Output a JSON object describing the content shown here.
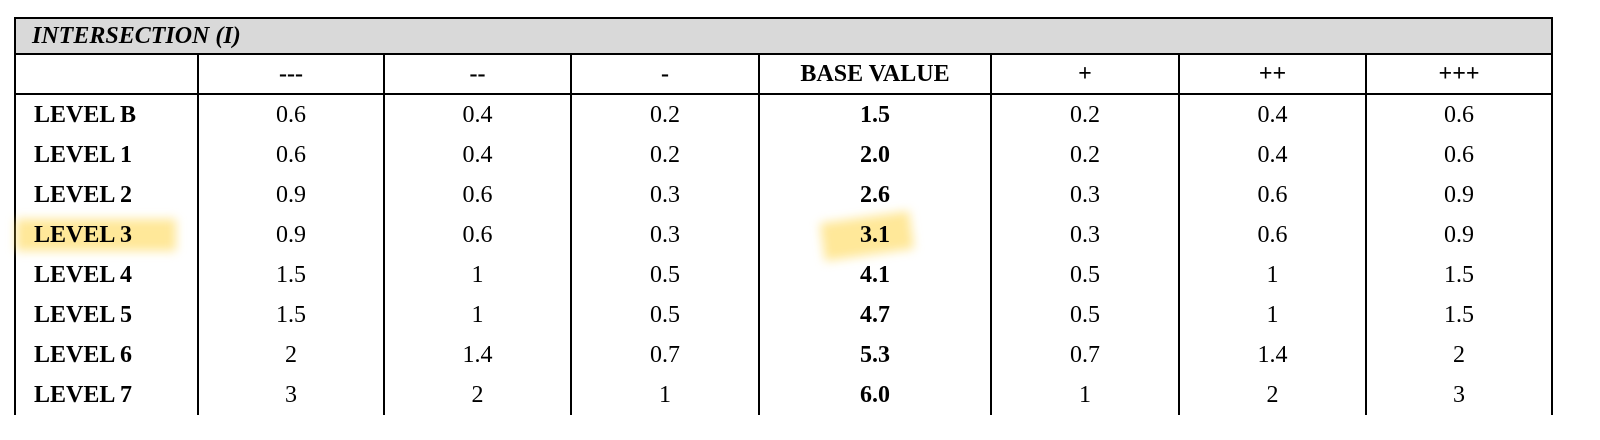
{
  "title": "INTERSECTION (I)",
  "table": {
    "header": [
      "---",
      "--",
      "-",
      "BASE VALUE",
      "+",
      "++",
      "+++"
    ],
    "rows": [
      {
        "label": "LEVEL B",
        "cells": [
          "0.6",
          "0.4",
          "0.2",
          "1.5",
          "0.2",
          "0.4",
          "0.6"
        ]
      },
      {
        "label": "LEVEL 1",
        "cells": [
          "0.6",
          "0.4",
          "0.2",
          "2.0",
          "0.2",
          "0.4",
          "0.6"
        ]
      },
      {
        "label": "LEVEL 2",
        "cells": [
          "0.9",
          "0.6",
          "0.3",
          "2.6",
          "0.3",
          "0.6",
          "0.9"
        ]
      },
      {
        "label": "LEVEL 3",
        "cells": [
          "0.9",
          "0.6",
          "0.3",
          "3.1",
          "0.3",
          "0.6",
          "0.9"
        ]
      },
      {
        "label": "LEVEL 4",
        "cells": [
          "1.5",
          "1",
          "0.5",
          "4.1",
          "0.5",
          "1",
          "1.5"
        ]
      },
      {
        "label": "LEVEL 5",
        "cells": [
          "1.5",
          "1",
          "0.5",
          "4.7",
          "0.5",
          "1",
          "1.5"
        ]
      },
      {
        "label": "LEVEL 6",
        "cells": [
          "2",
          "1.4",
          "0.7",
          "5.3",
          "0.7",
          "1.4",
          "2"
        ]
      },
      {
        "label": "LEVEL 7",
        "cells": [
          "3",
          "2",
          "1",
          "6.0",
          "1",
          "2",
          "3"
        ]
      }
    ]
  }
}
